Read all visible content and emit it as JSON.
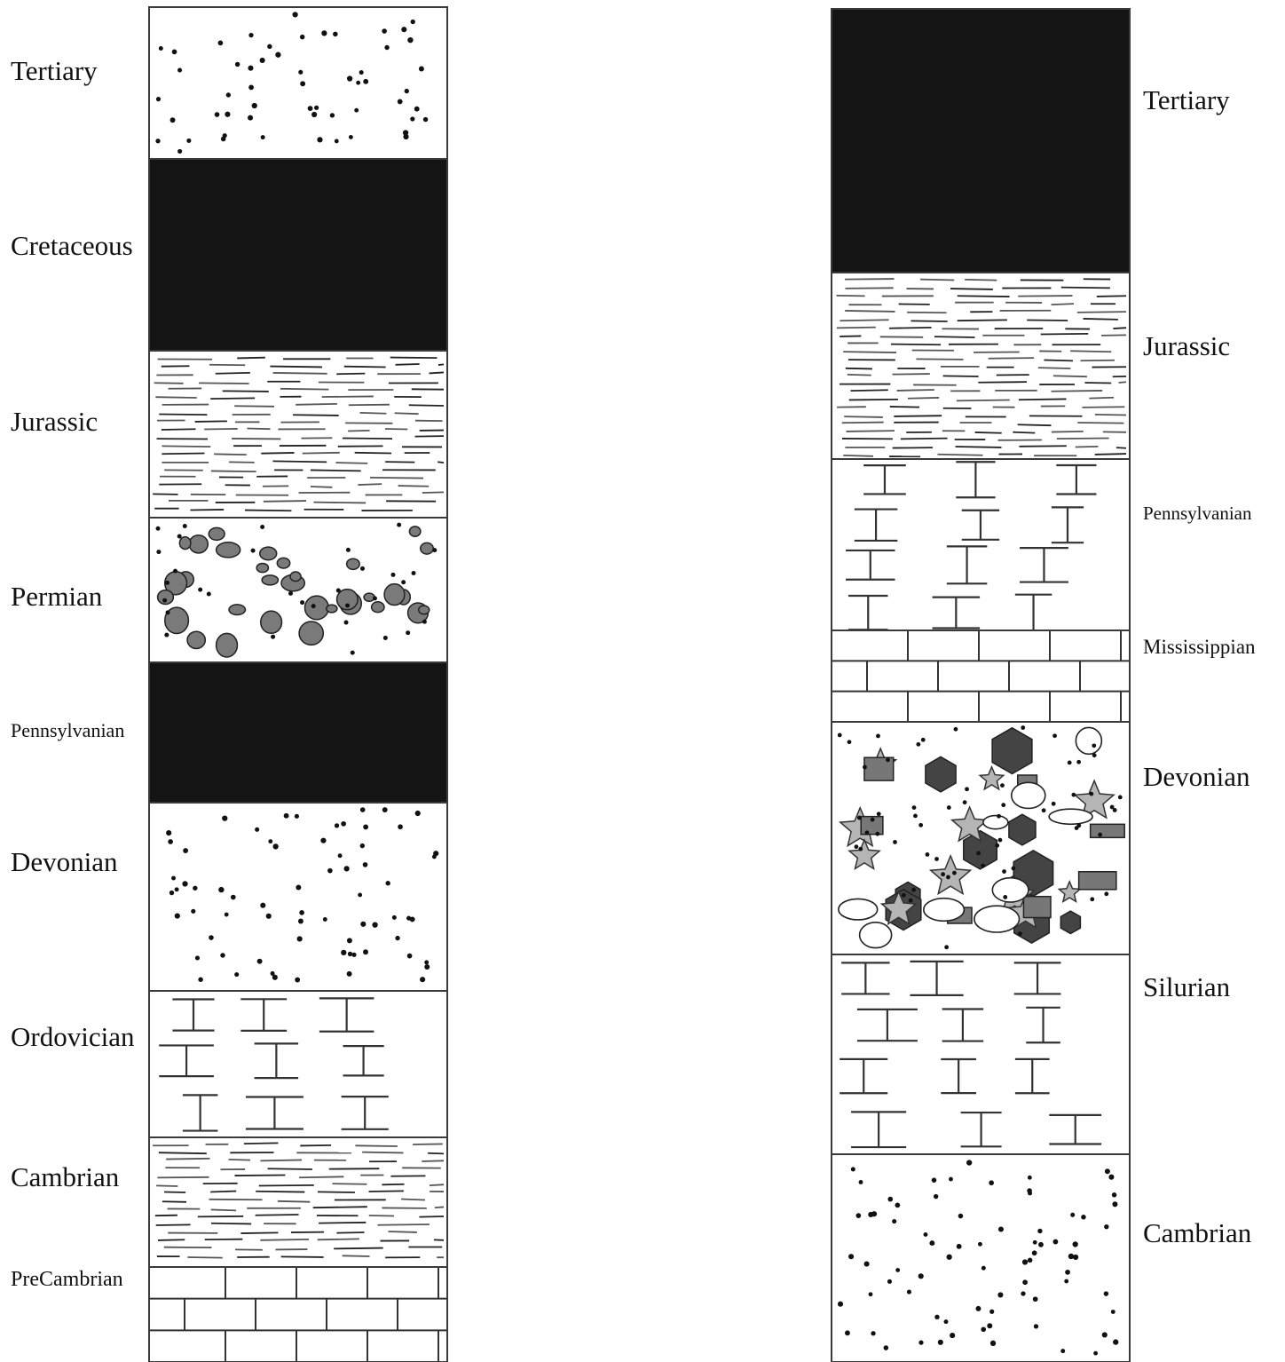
{
  "colors": {
    "coal": "#141414",
    "outline": "#3a3a3a",
    "hatch": "#333333",
    "clast": "#7a7a7a",
    "dark_clast": "#444444",
    "star": "#b5b5b5",
    "block": "#777777",
    "background": "#ffffff"
  },
  "columns": [
    {
      "id": "left",
      "label_side": "left",
      "units": [
        {
          "label": "Tertiary",
          "pattern": "sandstone"
        },
        {
          "label": "Cretaceous",
          "pattern": "coal"
        },
        {
          "label": "Jurassic",
          "pattern": "shale"
        },
        {
          "label": "Permian",
          "pattern": "conglomerate"
        },
        {
          "label": "Pennsylvanian",
          "pattern": "coal"
        },
        {
          "label": "Devonian",
          "pattern": "sandstone"
        },
        {
          "label": "Ordovician",
          "pattern": "limestone-dolomite"
        },
        {
          "label": "Cambrian",
          "pattern": "shale"
        },
        {
          "label": "PreCambrian",
          "pattern": "brick-limestone"
        }
      ]
    },
    {
      "id": "right",
      "label_side": "right",
      "units": [
        {
          "label": "Tertiary",
          "pattern": "coal"
        },
        {
          "label": "Jurassic",
          "pattern": "shale"
        },
        {
          "label": "Pennsylvanian",
          "pattern": "limestone-dolomite"
        },
        {
          "label": "Mississippian",
          "pattern": "brick-limestone"
        },
        {
          "label": "Devonian",
          "pattern": "breccia"
        },
        {
          "label": "Silurian",
          "pattern": "limestone-dolomite"
        },
        {
          "label": "Cambrian",
          "pattern": "sandstone"
        }
      ]
    }
  ]
}
